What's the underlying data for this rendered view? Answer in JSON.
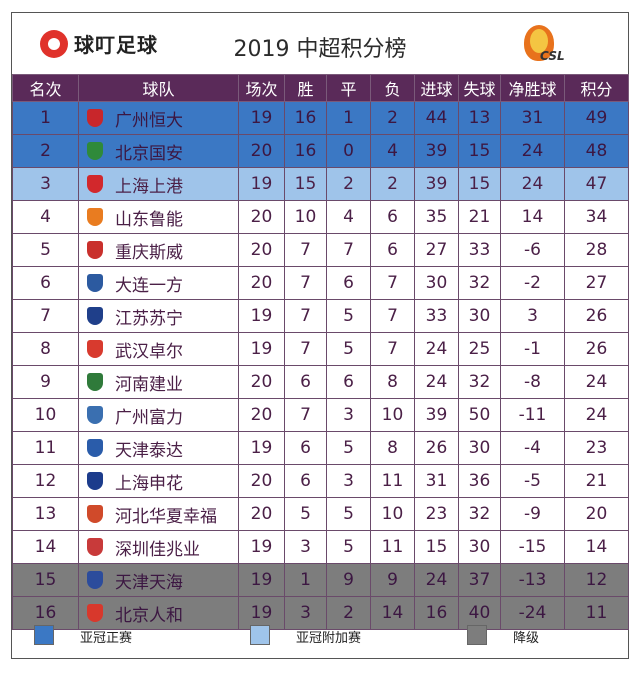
{
  "header": {
    "brand": "球叮足球",
    "title": "2019 中超积分榜",
    "league_logo_text": "CSL"
  },
  "columns": [
    "名次",
    "球队",
    "场次",
    "胜",
    "平",
    "负",
    "进球",
    "失球",
    "净胜球",
    "积分"
  ],
  "rows": [
    {
      "rank": "1",
      "team": "广州恒大",
      "played": "19",
      "w": "16",
      "d": "1",
      "l": "2",
      "gf": "44",
      "ga": "13",
      "gd": "31",
      "pts": "49",
      "zone": "acl",
      "badge": "#c8262b"
    },
    {
      "rank": "2",
      "team": "北京国安",
      "played": "20",
      "w": "16",
      "d": "0",
      "l": "4",
      "gf": "39",
      "ga": "15",
      "gd": "24",
      "pts": "48",
      "zone": "acl",
      "badge": "#2f8a3a"
    },
    {
      "rank": "3",
      "team": "上海上港",
      "played": "19",
      "w": "15",
      "d": "2",
      "l": "2",
      "gf": "39",
      "ga": "15",
      "gd": "24",
      "pts": "47",
      "zone": "acl-q",
      "badge": "#d2282c"
    },
    {
      "rank": "4",
      "team": "山东鲁能",
      "played": "20",
      "w": "10",
      "d": "4",
      "l": "6",
      "gf": "35",
      "ga": "21",
      "gd": "14",
      "pts": "34",
      "zone": "",
      "badge": "#e97c20"
    },
    {
      "rank": "5",
      "team": "重庆斯威",
      "played": "20",
      "w": "7",
      "d": "7",
      "l": "6",
      "gf": "27",
      "ga": "33",
      "gd": "-6",
      "pts": "28",
      "zone": "",
      "badge": "#c9302c"
    },
    {
      "rank": "6",
      "team": "大连一方",
      "played": "20",
      "w": "7",
      "d": "6",
      "l": "7",
      "gf": "30",
      "ga": "32",
      "gd": "-2",
      "pts": "27",
      "zone": "",
      "badge": "#2c5aa0"
    },
    {
      "rank": "7",
      "team": "江苏苏宁",
      "played": "19",
      "w": "7",
      "d": "5",
      "l": "7",
      "gf": "33",
      "ga": "30",
      "gd": "3",
      "pts": "26",
      "zone": "",
      "badge": "#1f3f8a"
    },
    {
      "rank": "8",
      "team": "武汉卓尔",
      "played": "19",
      "w": "7",
      "d": "5",
      "l": "7",
      "gf": "24",
      "ga": "25",
      "gd": "-1",
      "pts": "26",
      "zone": "",
      "badge": "#d83a2e"
    },
    {
      "rank": "9",
      "team": "河南建业",
      "played": "20",
      "w": "6",
      "d": "6",
      "l": "8",
      "gf": "24",
      "ga": "32",
      "gd": "-8",
      "pts": "24",
      "zone": "",
      "badge": "#2f7a3a"
    },
    {
      "rank": "10",
      "team": "广州富力",
      "played": "20",
      "w": "7",
      "d": "3",
      "l": "10",
      "gf": "39",
      "ga": "50",
      "gd": "-11",
      "pts": "24",
      "zone": "",
      "badge": "#3a6fb0"
    },
    {
      "rank": "11",
      "team": "天津泰达",
      "played": "19",
      "w": "6",
      "d": "5",
      "l": "8",
      "gf": "26",
      "ga": "30",
      "gd": "-4",
      "pts": "23",
      "zone": "",
      "badge": "#2a5caa"
    },
    {
      "rank": "12",
      "team": "上海申花",
      "played": "20",
      "w": "6",
      "d": "3",
      "l": "11",
      "gf": "31",
      "ga": "36",
      "gd": "-5",
      "pts": "21",
      "zone": "",
      "badge": "#1c3c8c"
    },
    {
      "rank": "13",
      "team": "河北华夏幸福",
      "played": "20",
      "w": "5",
      "d": "5",
      "l": "10",
      "gf": "23",
      "ga": "32",
      "gd": "-9",
      "pts": "20",
      "zone": "",
      "badge": "#d04a2a"
    },
    {
      "rank": "14",
      "team": "深圳佳兆业",
      "played": "19",
      "w": "3",
      "d": "5",
      "l": "11",
      "gf": "15",
      "ga": "30",
      "gd": "-15",
      "pts": "14",
      "zone": "",
      "badge": "#c83a3a"
    },
    {
      "rank": "15",
      "team": "天津天海",
      "played": "19",
      "w": "1",
      "d": "9",
      "l": "9",
      "gf": "24",
      "ga": "37",
      "gd": "-13",
      "pts": "12",
      "zone": "rel",
      "badge": "#2c4c9c"
    },
    {
      "rank": "16",
      "team": "北京人和",
      "played": "19",
      "w": "3",
      "d": "2",
      "l": "14",
      "gf": "16",
      "ga": "40",
      "gd": "-24",
      "pts": "11",
      "zone": "rel",
      "badge": "#d8382c"
    }
  ],
  "legend": [
    {
      "label": "亚冠正赛",
      "color": "#3b78c4"
    },
    {
      "label": "亚冠附加赛",
      "color": "#9fc4ea"
    },
    {
      "label": "降级",
      "color": "#7d7d7d"
    }
  ]
}
